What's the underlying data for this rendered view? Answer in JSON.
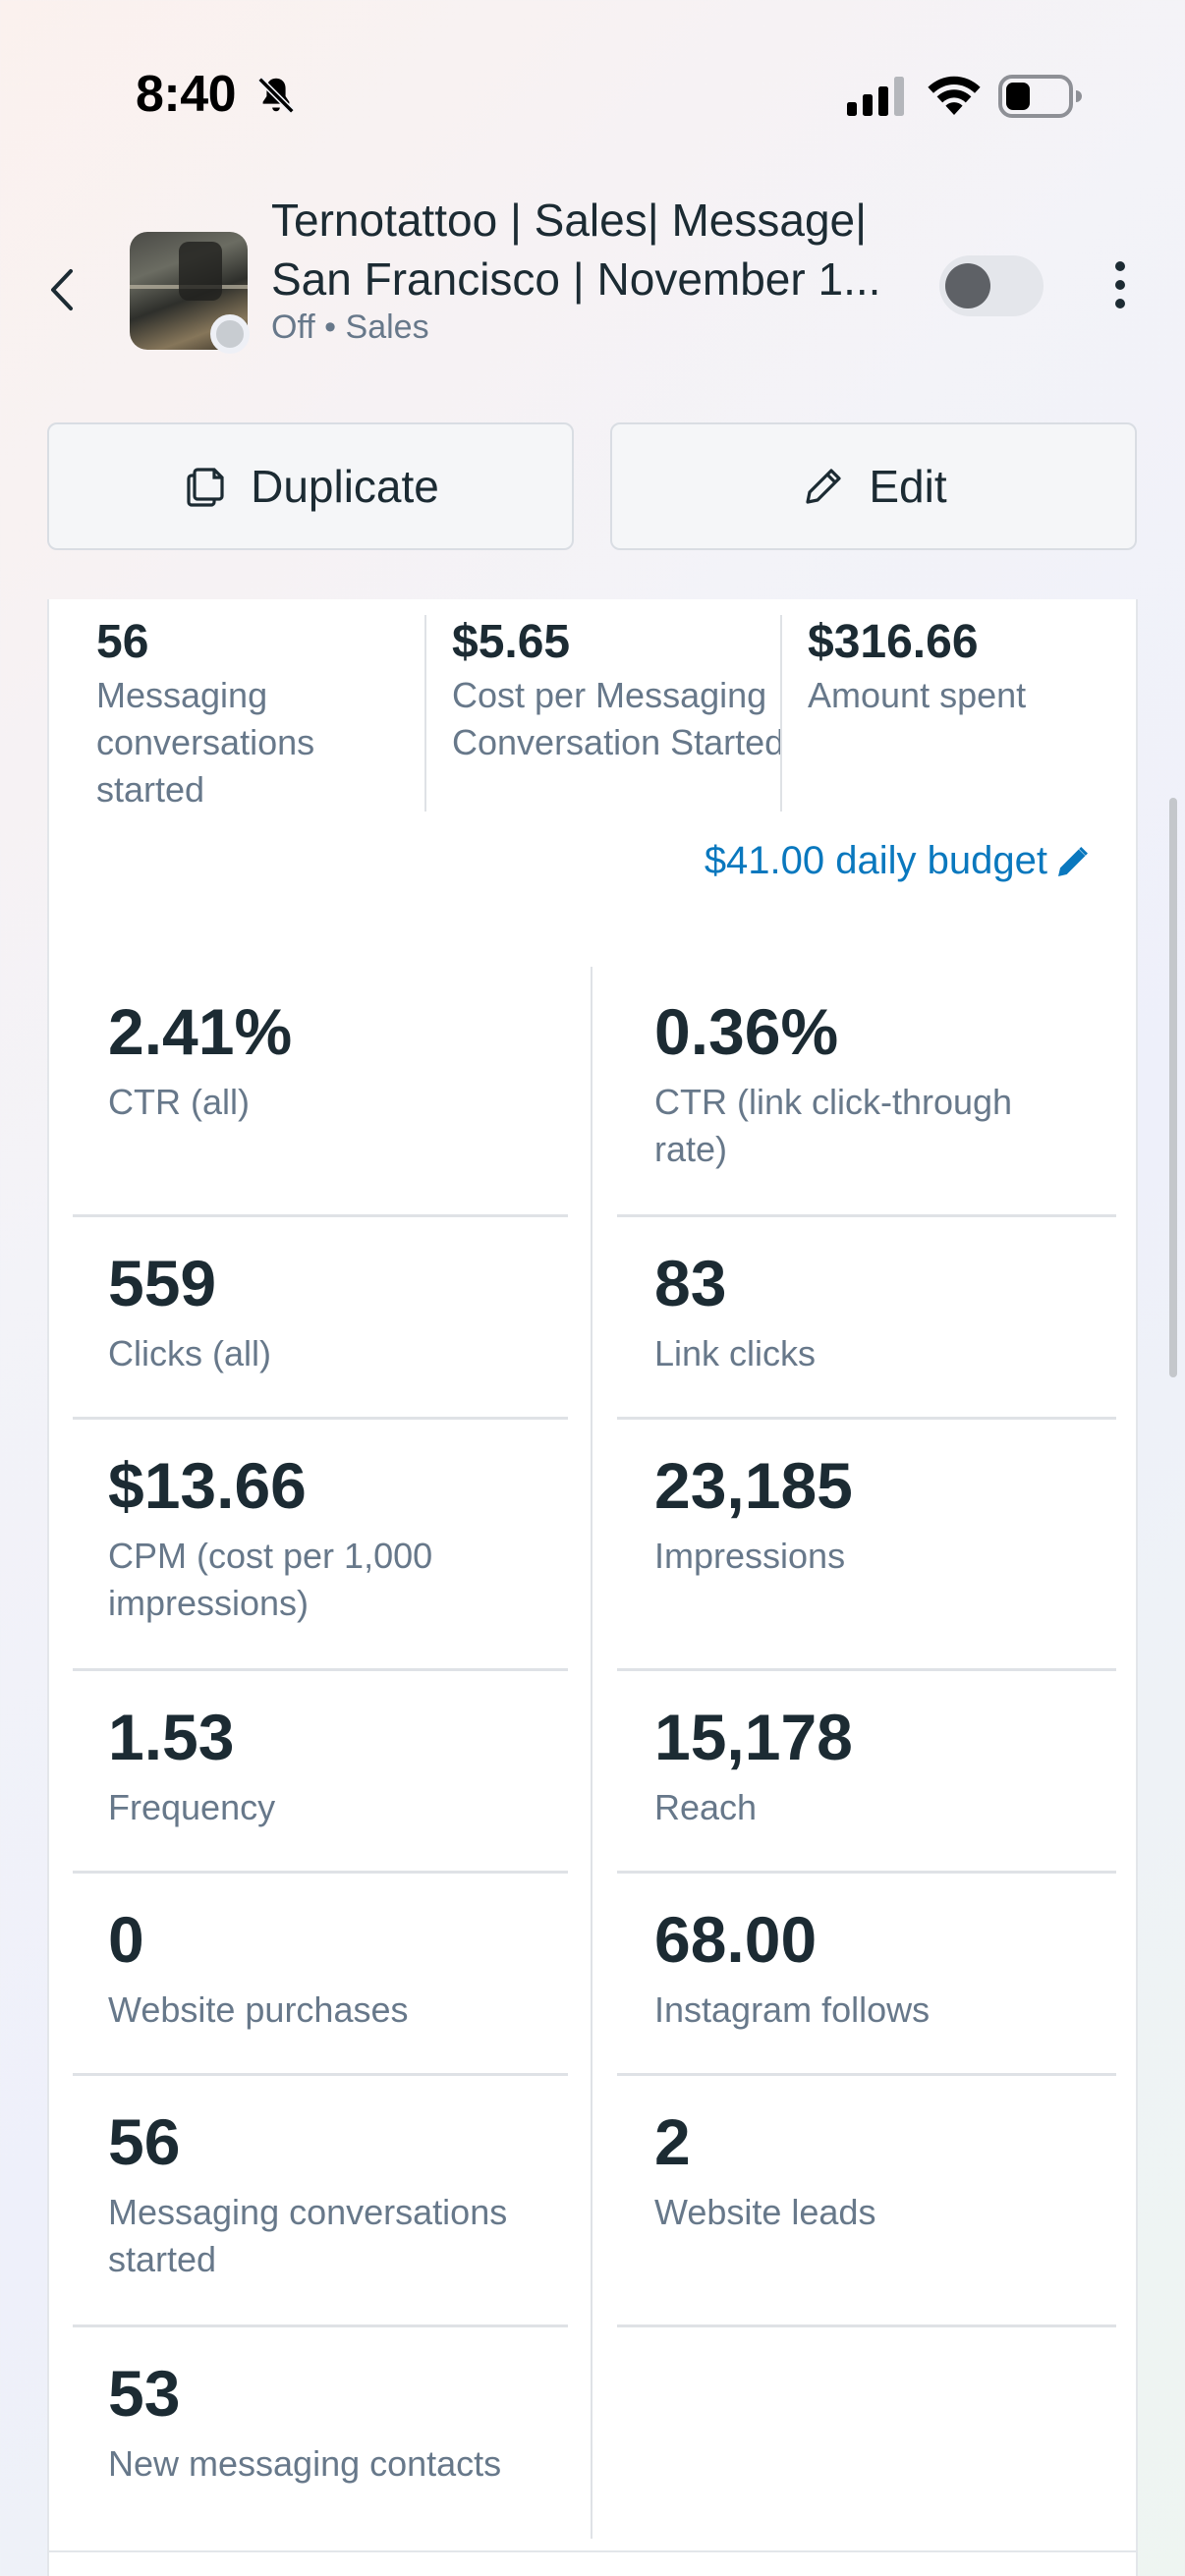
{
  "status_bar": {
    "time": "8:40",
    "icons": [
      "bell-slash-icon",
      "cellular-signal-icon",
      "wifi-icon",
      "battery-icon"
    ]
  },
  "header": {
    "title_line1": "Ternotattoo | Sales| Message|",
    "title_line2": "San Francisco | November 1...",
    "subtitle": "Off • Sales",
    "toggle_state": "off"
  },
  "actions": {
    "duplicate_label": "Duplicate",
    "edit_label": "Edit"
  },
  "summary": [
    {
      "value": "56",
      "label": "Messaging conversations started"
    },
    {
      "value": "$5.65",
      "label": "Cost per Messaging Conversation Started"
    },
    {
      "value": "$316.66",
      "label": "Amount spent"
    }
  ],
  "budget": {
    "label": "$41.00 daily budget"
  },
  "metrics": [
    {
      "value": "2.41%",
      "label": "CTR (all)"
    },
    {
      "value": "0.36%",
      "label": "CTR (link click-through rate)"
    },
    {
      "value": "559",
      "label": "Clicks (all)"
    },
    {
      "value": "83",
      "label": "Link clicks"
    },
    {
      "value": "$13.66",
      "label": "CPM (cost per 1,000 impressions)"
    },
    {
      "value": "23,185",
      "label": "Impressions"
    },
    {
      "value": "1.53",
      "label": "Frequency"
    },
    {
      "value": "15,178",
      "label": "Reach"
    },
    {
      "value": "0",
      "label": "Website purchases"
    },
    {
      "value": "68.00",
      "label": "Instagram follows"
    },
    {
      "value": "56",
      "label": "Messaging conversations started"
    },
    {
      "value": "2",
      "label": "Website leads"
    },
    {
      "value": "53",
      "label": "New messaging contacts"
    }
  ],
  "colors": {
    "text": "#1c2b33",
    "secondary": "#67788a",
    "link": "#0a78be",
    "divider": "#dfe2e6"
  }
}
